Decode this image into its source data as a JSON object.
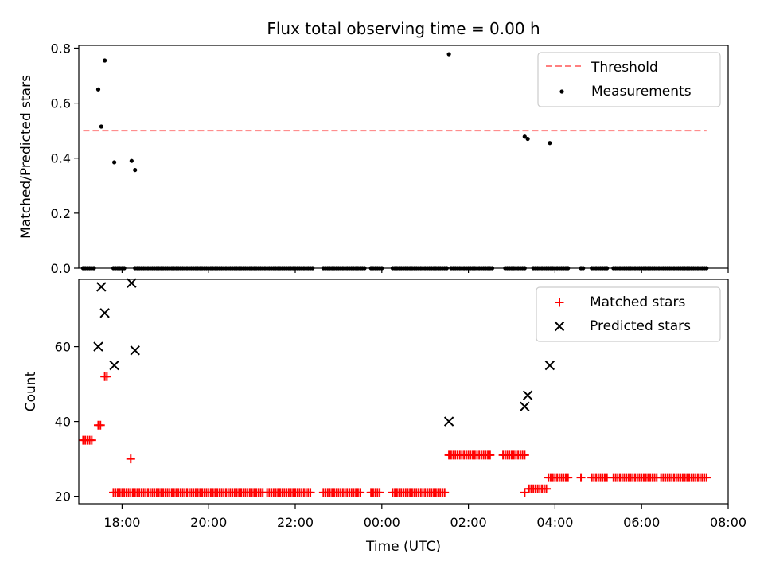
{
  "title": "Flux total observing time = 0.00 h",
  "chart_data": [
    {
      "type": "scatter",
      "panel": "top",
      "ylabel": "Matched/Predicted stars",
      "xlabel": "",
      "xlim": [
        17.0,
        32.0
      ],
      "ylim": [
        0.0,
        0.81
      ],
      "x_tick_labels_visible": false,
      "y_ticks": [
        0.0,
        0.2,
        0.4,
        0.6,
        0.8
      ],
      "y_tick_labels": [
        "0.0",
        "0.2",
        "0.4",
        "0.6",
        "0.8"
      ],
      "legend_position": "top-right",
      "threshold": {
        "name": "Threshold",
        "y": 0.5,
        "x_range": [
          17.1,
          31.5
        ],
        "color": "#ff7f7f",
        "style": "dashed"
      },
      "series": [
        {
          "name": "Measurements",
          "color": "#000000",
          "marker": "dot",
          "x": [
            17.45,
            17.52,
            17.6,
            17.82,
            18.22,
            18.3,
            25.55,
            27.3,
            27.37,
            27.88
          ],
          "y": [
            0.65,
            0.515,
            0.755,
            0.385,
            0.39,
            0.357,
            0.778,
            0.478,
            0.47,
            0.455
          ]
        }
      ],
      "zero_series": {
        "color": "#000000",
        "y": 0,
        "x_ranges": [
          [
            17.1,
            17.35
          ],
          [
            17.8,
            18.05
          ],
          [
            18.3,
            21.3
          ],
          [
            21.35,
            22.4
          ],
          [
            22.65,
            23.6
          ],
          [
            23.75,
            24.0
          ],
          [
            24.25,
            25.5
          ],
          [
            25.6,
            26.55
          ],
          [
            26.85,
            27.3
          ],
          [
            27.5,
            28.3
          ],
          [
            28.6,
            28.65
          ],
          [
            28.85,
            29.2
          ],
          [
            29.35,
            30.4
          ],
          [
            30.45,
            31.5
          ]
        ]
      }
    },
    {
      "type": "scatter",
      "panel": "bottom",
      "ylabel": "Count",
      "xlabel": "Time (UTC)",
      "xlim": [
        17.0,
        32.0
      ],
      "ylim": [
        18.0,
        78.0
      ],
      "x_ticks": [
        18,
        20,
        22,
        24,
        26,
        28,
        30,
        32
      ],
      "x_tick_labels": [
        "18:00",
        "20:00",
        "22:00",
        "00:00",
        "02:00",
        "04:00",
        "06:00",
        "08:00"
      ],
      "y_ticks": [
        20,
        40,
        60
      ],
      "y_tick_labels": [
        "20",
        "40",
        "60"
      ],
      "legend_position": "top-right",
      "series": [
        {
          "name": "Matched stars",
          "color": "#ff0000",
          "marker": "plus",
          "points": [
            [
              17.1,
              35
            ],
            [
              17.15,
              35
            ],
            [
              17.2,
              35
            ],
            [
              17.25,
              35
            ],
            [
              17.3,
              35
            ],
            [
              17.45,
              39
            ],
            [
              17.5,
              39
            ],
            [
              17.6,
              52
            ],
            [
              17.65,
              52
            ],
            [
              18.2,
              30
            ]
          ],
          "ranges": [
            {
              "y": 21,
              "x": [
                17.8,
                21.25
              ]
            },
            {
              "y": 21,
              "x": [
                21.35,
                22.35
              ]
            },
            {
              "y": 21,
              "x": [
                22.65,
                23.5
              ]
            },
            {
              "y": 21,
              "x": [
                23.75,
                23.95
              ]
            },
            {
              "y": 21,
              "x": [
                24.25,
                25.45
              ]
            },
            {
              "y": 31,
              "x": [
                25.55,
                26.5
              ]
            },
            {
              "y": 31,
              "x": [
                26.8,
                27.3
              ]
            },
            {
              "y": 21,
              "x": [
                27.3,
                27.3
              ]
            },
            {
              "y": 22,
              "x": [
                27.4,
                27.8
              ]
            },
            {
              "y": 25,
              "x": [
                27.85,
                28.3
              ]
            },
            {
              "y": 25,
              "x": [
                28.6,
                28.6
              ]
            },
            {
              "y": 25,
              "x": [
                28.85,
                29.2
              ]
            },
            {
              "y": 25,
              "x": [
                29.35,
                30.35
              ]
            },
            {
              "y": 25,
              "x": [
                30.45,
                31.5
              ]
            }
          ]
        },
        {
          "name": "Predicted stars",
          "color": "#000000",
          "marker": "cross",
          "x": [
            17.45,
            17.52,
            17.6,
            17.82,
            18.22,
            18.3,
            25.55,
            27.3,
            27.37,
            27.88
          ],
          "y": [
            60,
            76,
            69,
            55,
            77,
            59,
            40,
            44,
            47,
            55
          ]
        }
      ]
    }
  ]
}
